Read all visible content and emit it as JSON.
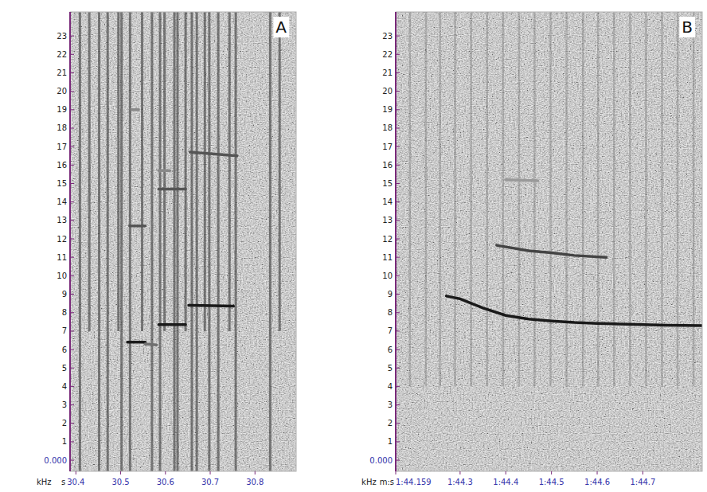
{
  "chart_data": [
    {
      "type": "spectrogram",
      "title": "A",
      "xlabel": "s",
      "ylabel": "kHz",
      "xlim": [
        30.387,
        30.892
      ],
      "ylim": [
        -0.6,
        24.3
      ],
      "xticks": [
        30.4,
        30.5,
        30.6,
        30.7,
        30.8
      ],
      "yticks": [
        {
          "value": 0,
          "label": "0.000"
        },
        1,
        2,
        3,
        4,
        5,
        6,
        7,
        8,
        9,
        10,
        11,
        12,
        13,
        14,
        15,
        16,
        17,
        18,
        19,
        20,
        21,
        22,
        23
      ],
      "clicks": [
        30.409,
        30.43,
        30.452,
        30.471,
        30.495,
        30.502,
        30.521,
        30.548,
        30.57,
        30.588,
        30.598,
        30.62,
        30.627,
        30.645,
        30.659,
        30.67,
        30.688,
        30.698,
        30.718,
        30.743,
        30.757,
        30.834,
        30.855
      ],
      "series": [
        {
          "color": "#1a1a1a",
          "x": [
            30.515,
            30.555
          ],
          "values": [
            6.4,
            6.4
          ]
        },
        {
          "color": "#707070",
          "x": [
            30.555,
            30.58
          ],
          "values": [
            6.3,
            6.25
          ]
        },
        {
          "color": "#1a1a1a",
          "x": [
            30.585,
            30.645
          ],
          "values": [
            7.35,
            7.35
          ]
        },
        {
          "color": "#1a1a1a",
          "x": [
            30.652,
            30.752
          ],
          "values": [
            8.4,
            8.35
          ]
        },
        {
          "color": "#555555",
          "x": [
            30.52,
            30.555
          ],
          "values": [
            12.7,
            12.7
          ]
        },
        {
          "color": "#888888",
          "x": [
            30.525,
            30.54
          ],
          "values": [
            19.0,
            19.0
          ]
        },
        {
          "color": "#555555",
          "x": [
            30.585,
            30.645
          ],
          "values": [
            14.7,
            14.7
          ]
        },
        {
          "color": "#888888",
          "x": [
            30.585,
            30.61
          ],
          "values": [
            15.7,
            15.7
          ]
        },
        {
          "color": "#555555",
          "x": [
            30.655,
            30.76
          ],
          "values": [
            16.7,
            16.5
          ]
        }
      ]
    },
    {
      "type": "spectrogram",
      "title": "B",
      "xlabel": "m:s",
      "ylabel": "kHz",
      "xlim": [
        104.159,
        104.83
      ],
      "ylim": [
        -0.6,
        24.3
      ],
      "xticks": [
        {
          "value": 104.159,
          "label": "1:44.159"
        },
        {
          "value": 104.3,
          "label": "1:44.3"
        },
        {
          "value": 104.4,
          "label": "1:44.4"
        },
        {
          "value": 104.5,
          "label": "1:44.5"
        },
        {
          "value": 104.6,
          "label": "1:44.6"
        },
        {
          "value": 104.7,
          "label": "1:44.7"
        }
      ],
      "yticks": [
        {
          "value": 0,
          "label": "0.000"
        },
        1,
        2,
        3,
        4,
        5,
        6,
        7,
        8,
        9,
        10,
        11,
        12,
        13,
        14,
        15,
        16,
        17,
        18,
        19,
        20,
        21,
        22,
        23
      ],
      "clicks": [
        104.19,
        104.225,
        104.256,
        104.289,
        104.324,
        104.359,
        104.394,
        104.429,
        104.463,
        104.498,
        104.533,
        104.569,
        104.602,
        104.637,
        104.672,
        104.707,
        104.742,
        104.776,
        104.811
      ],
      "series": [
        {
          "color": "#1a1a1a",
          "x": [
            104.27,
            104.3,
            104.35,
            104.4,
            104.45,
            104.5,
            104.55,
            104.6,
            104.65,
            104.7,
            104.75,
            104.83
          ],
          "values": [
            8.9,
            8.75,
            8.25,
            7.85,
            7.65,
            7.55,
            7.47,
            7.42,
            7.38,
            7.35,
            7.32,
            7.3
          ]
        },
        {
          "color": "#444444",
          "x": [
            104.38,
            104.45,
            104.5,
            104.55,
            104.62
          ],
          "values": [
            11.65,
            11.35,
            11.25,
            11.1,
            11.0
          ]
        },
        {
          "color": "#999999",
          "x": [
            104.4,
            104.47
          ],
          "values": [
            15.2,
            15.15
          ]
        }
      ]
    }
  ]
}
